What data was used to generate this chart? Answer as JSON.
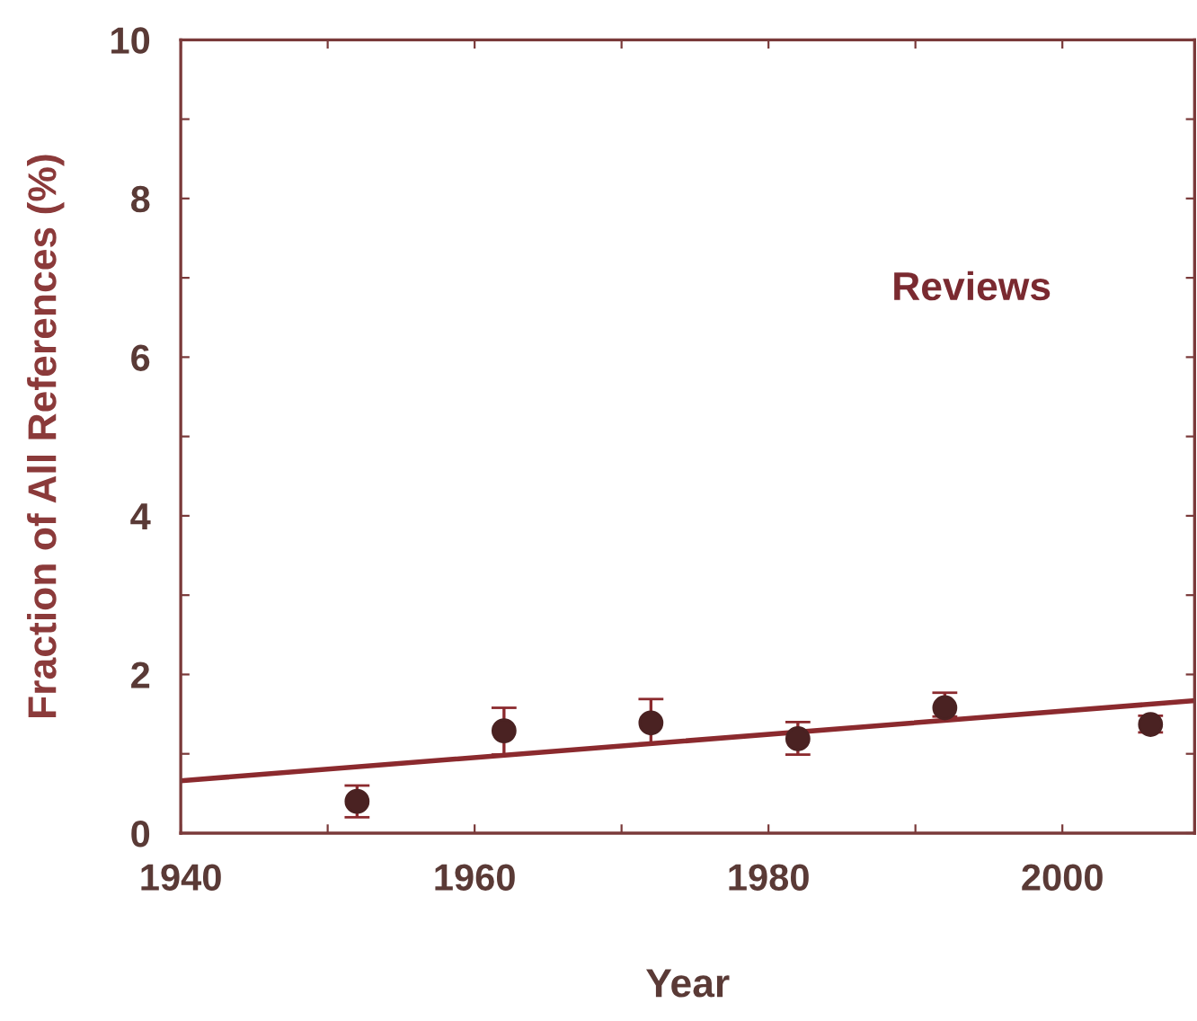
{
  "chart_data": {
    "type": "scatter",
    "xlabel": "Year",
    "ylabel": "Fraction of All References (%)",
    "annotations": [
      "Reviews"
    ],
    "xlim": [
      1940,
      2009
    ],
    "ylim": [
      0,
      10
    ],
    "xticks": [
      1940,
      {
        "value": 1950,
        "label": null
      },
      1960,
      {
        "value": 1970,
        "label": null
      },
      1980,
      {
        "value": 1990,
        "label": null
      },
      2000
    ],
    "yticks": [
      0,
      {
        "value": 1,
        "label": null
      },
      2,
      {
        "value": 3,
        "label": null
      },
      4,
      {
        "value": 5,
        "label": null
      },
      6,
      {
        "value": 7,
        "label": null
      },
      8,
      {
        "value": 9,
        "label": null
      },
      10
    ],
    "grid": false,
    "legend": false,
    "series": [
      {
        "marker": "circle",
        "color": "#4a2222",
        "x": [
          1952,
          1962,
          1972,
          1982,
          1992,
          2006
        ],
        "values": [
          0.4,
          1.29,
          1.39,
          1.19,
          1.58,
          1.37
        ],
        "errors": [
          [
            0.2,
            0.6
          ],
          [
            0.99,
            1.58
          ],
          [
            1.13,
            1.69
          ],
          [
            0.99,
            1.4
          ],
          [
            1.47,
            1.77
          ],
          [
            1.27,
            1.48
          ]
        ]
      },
      {
        "type": "line",
        "marker": "none",
        "color": "#8b2a2e",
        "x": [
          1940,
          2009
        ],
        "values": [
          0.66,
          1.67
        ]
      }
    ]
  }
}
